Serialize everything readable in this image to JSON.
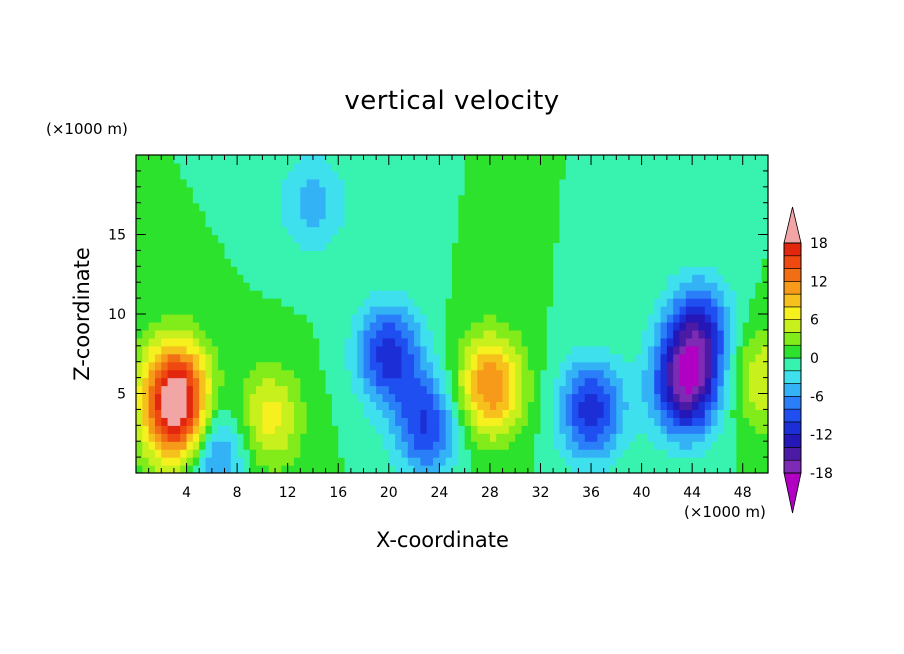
{
  "chart_data": {
    "type": "heatmap",
    "title": "vertical velocity",
    "xlabel": "X-coordinate",
    "ylabel": "Z-coordinate",
    "x_unit": "(×1000 m)",
    "y_unit": "(×1000 m)",
    "xlim": [
      0,
      50
    ],
    "ylim": [
      0,
      20
    ],
    "x_ticks": [
      4,
      8,
      12,
      16,
      20,
      24,
      28,
      32,
      36,
      40,
      44,
      48
    ],
    "y_ticks": [
      5,
      10,
      15
    ],
    "colorbar": {
      "levels": [
        -20,
        -18,
        -16,
        -14,
        -12,
        -10,
        -8,
        -6,
        -4,
        -2,
        0,
        2,
        4,
        6,
        8,
        10,
        12,
        14,
        16,
        18,
        20
      ],
      "tick_labels": [
        "18",
        "12",
        "6",
        "0",
        "-6",
        "-12",
        "-18"
      ],
      "tick_values": [
        18,
        12,
        6,
        0,
        -6,
        -12,
        -18
      ],
      "colors": [
        "#b100c4",
        "#7d2ab5",
        "#4b1ba6",
        "#2516b8",
        "#1c2fd6",
        "#1f4ff0",
        "#2a7ff8",
        "#33b2f5",
        "#3ee0ee",
        "#38f2b0",
        "#2de22d",
        "#82ec1a",
        "#c8f01c",
        "#f6f01e",
        "#f7c11d",
        "#f79a1a",
        "#f26e14",
        "#ef4811",
        "#e3260e",
        "#f2a5a5"
      ],
      "extend": "both"
    },
    "features": [
      {
        "x": 3.0,
        "z": 5.5,
        "value": 14
      },
      {
        "x": 3.5,
        "z": 3.0,
        "value": 13
      },
      {
        "x": 6.0,
        "z": 1.5,
        "value": -9
      },
      {
        "x": 10.5,
        "z": 3.5,
        "value": 7
      },
      {
        "x": 14.0,
        "z": 17.0,
        "value": -5
      },
      {
        "x": 20.0,
        "z": 7.5,
        "value": -11
      },
      {
        "x": 23.0,
        "z": 3.0,
        "value": -10
      },
      {
        "x": 28.0,
        "z": 5.5,
        "value": 12
      },
      {
        "x": 36.0,
        "z": 4.0,
        "value": -11
      },
      {
        "x": 43.5,
        "z": 5.5,
        "value": -16
      },
      {
        "x": 44.5,
        "z": 9.0,
        "value": -11
      },
      {
        "x": 49.5,
        "z": 6.0,
        "value": 6
      }
    ]
  }
}
